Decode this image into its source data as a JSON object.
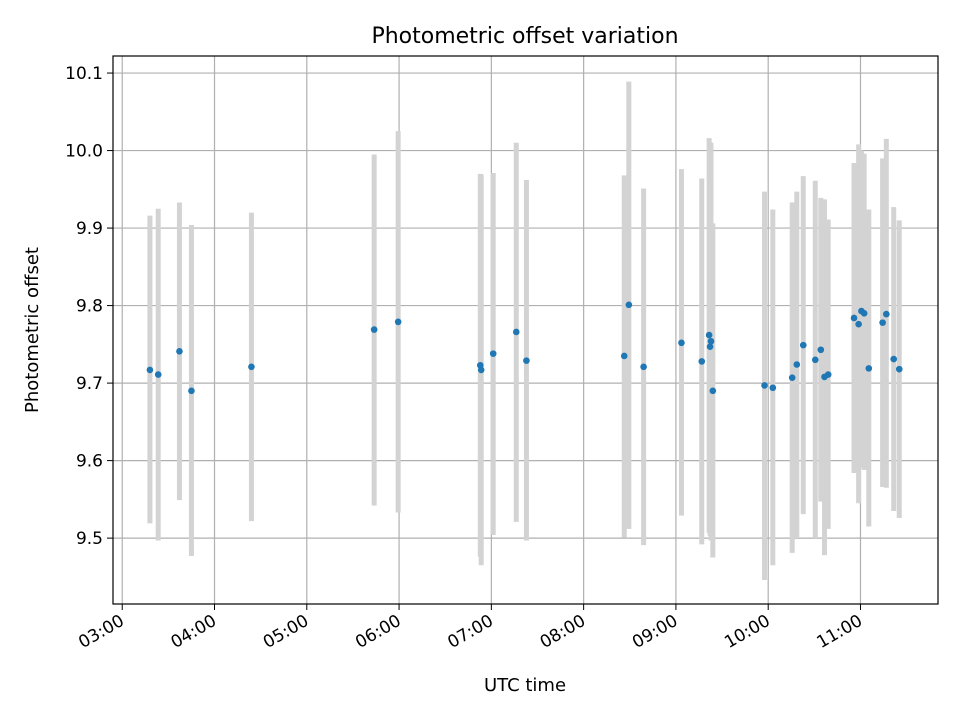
{
  "chart_data": {
    "type": "scatter",
    "title": "Photometric offset variation",
    "xlabel": "UTC time",
    "ylabel": "Photometric offset",
    "x_tick_labels": [
      "03:00",
      "04:00",
      "05:00",
      "06:00",
      "07:00",
      "08:00",
      "09:00",
      "10:00",
      "11:00"
    ],
    "y_ticks": [
      9.5,
      9.6,
      9.7,
      9.8,
      9.9,
      10.0,
      10.1
    ],
    "y_tick_labels": [
      "9.5",
      "9.6",
      "9.7",
      "9.8",
      "9.9",
      "10.0",
      "10.1"
    ],
    "xlim_hours": [
      2.9,
      11.84
    ],
    "ylim": [
      9.415,
      10.122
    ],
    "grid": true,
    "colors": {
      "point": "#1f77b4",
      "errorbar": "#d3d3d3"
    },
    "points": [
      {
        "t": 3.3,
        "y": 9.717,
        "lo": 9.519,
        "hi": 9.916
      },
      {
        "t": 3.39,
        "y": 9.711,
        "lo": 9.497,
        "hi": 9.925
      },
      {
        "t": 3.62,
        "y": 9.741,
        "lo": 9.549,
        "hi": 9.933
      },
      {
        "t": 3.75,
        "y": 9.69,
        "lo": 9.477,
        "hi": 9.904
      },
      {
        "t": 4.4,
        "y": 9.721,
        "lo": 9.522,
        "hi": 9.92
      },
      {
        "t": 5.73,
        "y": 9.769,
        "lo": 9.542,
        "hi": 9.995
      },
      {
        "t": 5.99,
        "y": 9.779,
        "lo": 9.533,
        "hi": 10.025
      },
      {
        "t": 6.88,
        "y": 9.723,
        "lo": 9.476,
        "hi": 9.97
      },
      {
        "t": 6.89,
        "y": 9.717,
        "lo": 9.465,
        "hi": 9.969
      },
      {
        "t": 7.02,
        "y": 9.738,
        "lo": 9.504,
        "hi": 9.971
      },
      {
        "t": 7.27,
        "y": 9.766,
        "lo": 9.521,
        "hi": 10.01
      },
      {
        "t": 7.38,
        "y": 9.729,
        "lo": 9.497,
        "hi": 9.962
      },
      {
        "t": 8.44,
        "y": 9.735,
        "lo": 9.501,
        "hi": 9.968
      },
      {
        "t": 8.49,
        "y": 9.801,
        "lo": 9.512,
        "hi": 10.089
      },
      {
        "t": 8.65,
        "y": 9.721,
        "lo": 9.491,
        "hi": 9.951
      },
      {
        "t": 9.06,
        "y": 9.752,
        "lo": 9.529,
        "hi": 9.976
      },
      {
        "t": 9.28,
        "y": 9.728,
        "lo": 9.492,
        "hi": 9.964
      },
      {
        "t": 9.36,
        "y": 9.762,
        "lo": 9.507,
        "hi": 10.016
      },
      {
        "t": 9.37,
        "y": 9.747,
        "lo": 9.503,
        "hi": 9.99
      },
      {
        "t": 9.38,
        "y": 9.754,
        "lo": 9.497,
        "hi": 10.01
      },
      {
        "t": 9.4,
        "y": 9.69,
        "lo": 9.475,
        "hi": 9.906
      },
      {
        "t": 9.96,
        "y": 9.697,
        "lo": 9.446,
        "hi": 9.947
      },
      {
        "t": 10.05,
        "y": 9.694,
        "lo": 9.465,
        "hi": 9.924
      },
      {
        "t": 10.26,
        "y": 9.707,
        "lo": 9.481,
        "hi": 9.933
      },
      {
        "t": 10.31,
        "y": 9.724,
        "lo": 9.5,
        "hi": 9.947
      },
      {
        "t": 10.38,
        "y": 9.749,
        "lo": 9.531,
        "hi": 9.967
      },
      {
        "t": 10.51,
        "y": 9.73,
        "lo": 9.5,
        "hi": 9.961
      },
      {
        "t": 10.57,
        "y": 9.743,
        "lo": 9.547,
        "hi": 9.939
      },
      {
        "t": 10.61,
        "y": 9.708,
        "lo": 9.478,
        "hi": 9.937
      },
      {
        "t": 10.65,
        "y": 9.711,
        "lo": 9.512,
        "hi": 9.911
      },
      {
        "t": 10.93,
        "y": 9.784,
        "lo": 9.584,
        "hi": 9.984
      },
      {
        "t": 10.98,
        "y": 9.776,
        "lo": 9.545,
        "hi": 10.008
      },
      {
        "t": 11.01,
        "y": 9.793,
        "lo": 9.591,
        "hi": 10.0
      },
      {
        "t": 11.04,
        "y": 9.79,
        "lo": 9.588,
        "hi": 9.996
      },
      {
        "t": 11.09,
        "y": 9.719,
        "lo": 9.515,
        "hi": 9.924
      },
      {
        "t": 11.24,
        "y": 9.778,
        "lo": 9.566,
        "hi": 9.99
      },
      {
        "t": 11.28,
        "y": 9.789,
        "lo": 9.565,
        "hi": 10.015
      },
      {
        "t": 11.36,
        "y": 9.731,
        "lo": 9.535,
        "hi": 9.927
      },
      {
        "t": 11.42,
        "y": 9.718,
        "lo": 9.526,
        "hi": 9.91
      }
    ]
  }
}
